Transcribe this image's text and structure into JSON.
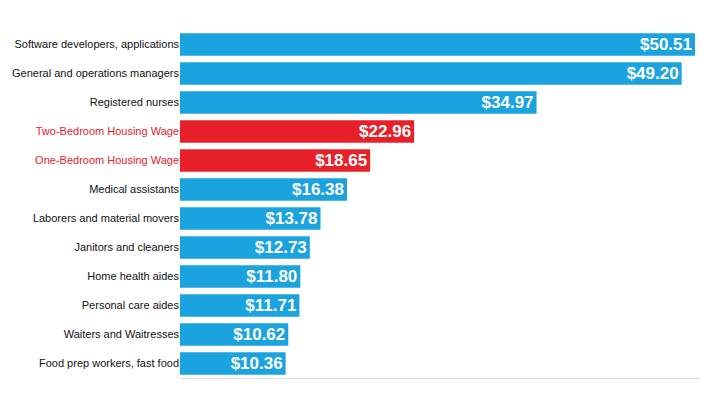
{
  "chart_data": {
    "type": "bar",
    "orientation": "horizontal",
    "categories": [
      "Software developers, applications",
      "General and operations managers",
      "Registered nurses",
      "Two-Bedroom Housing Wage",
      "One-Bedroom Housing Wage",
      "Medical assistants",
      "Laborers and material movers",
      "Janitors and cleaners",
      "Home health aides",
      "Personal care aides",
      "Waiters and Waitresses",
      "Food prep workers, fast food"
    ],
    "values": [
      50.51,
      49.2,
      34.97,
      22.96,
      18.65,
      16.38,
      13.78,
      12.73,
      11.8,
      11.71,
      10.62,
      10.36
    ],
    "value_labels": [
      "$50.51",
      "$49.20",
      "$34.97",
      "$22.96",
      "$18.65",
      "$16.38",
      "$13.78",
      "$12.73",
      "$11.80",
      "$11.71",
      "$10.62",
      "$10.36"
    ],
    "colors": [
      "#1ba3e0",
      "#1ba3e0",
      "#1ba3e0",
      "#e8202a",
      "#e8202a",
      "#1ba3e0",
      "#1ba3e0",
      "#1ba3e0",
      "#1ba3e0",
      "#1ba3e0",
      "#1ba3e0",
      "#1ba3e0"
    ],
    "xlim": [
      0,
      51
    ],
    "grid": false,
    "data_labels": true,
    "tick_labels": "y"
  }
}
